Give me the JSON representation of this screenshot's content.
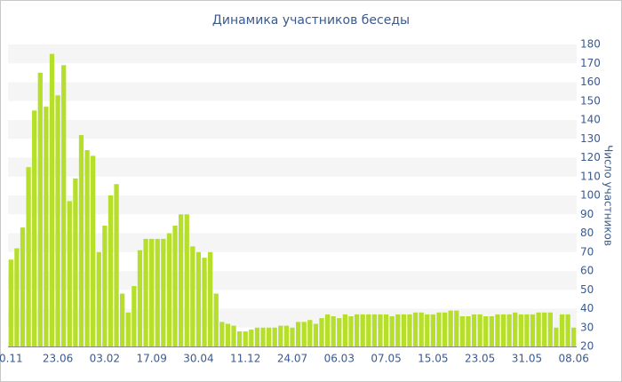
{
  "chart_data": {
    "type": "bar",
    "title": "Динамика участников беседы",
    "y_label": "Число участников",
    "categories": [
      "0.11",
      null,
      null,
      null,
      null,
      null,
      null,
      null,
      "23.06",
      null,
      null,
      null,
      null,
      null,
      null,
      null,
      "03.02",
      null,
      null,
      null,
      null,
      null,
      null,
      null,
      "17.09",
      null,
      null,
      null,
      null,
      null,
      null,
      null,
      "30.04",
      null,
      null,
      null,
      null,
      null,
      null,
      null,
      "11.12",
      null,
      null,
      null,
      null,
      null,
      null,
      null,
      "24.07",
      null,
      null,
      null,
      null,
      null,
      null,
      null,
      "06.03",
      null,
      null,
      null,
      null,
      null,
      null,
      null,
      "07.05",
      null,
      null,
      null,
      null,
      null,
      null,
      null,
      "15.05",
      null,
      null,
      null,
      null,
      null,
      null,
      null,
      "23.05",
      null,
      null,
      null,
      null,
      null,
      null,
      null,
      "31.05",
      null,
      null,
      null,
      null,
      null,
      null,
      null,
      "08.06"
    ],
    "values": [
      66,
      72,
      83,
      115,
      145,
      165,
      147,
      175,
      153,
      169,
      97,
      109,
      132,
      124,
      121,
      70,
      84,
      100,
      106,
      48,
      38,
      52,
      71,
      77,
      77,
      77,
      77,
      80,
      84,
      90,
      90,
      73,
      70,
      67,
      70,
      48,
      33,
      32,
      31,
      28,
      28,
      29,
      30,
      30,
      30,
      30,
      31,
      31,
      30,
      33,
      33,
      34,
      32,
      35,
      37,
      36,
      35,
      37,
      36,
      37,
      37,
      37,
      37,
      37,
      37,
      36,
      37,
      37,
      37,
      38,
      38,
      37,
      37,
      38,
      38,
      39,
      39,
      36,
      36,
      37,
      37,
      36,
      36,
      37,
      37,
      37,
      38,
      37,
      37,
      37,
      38,
      38,
      38,
      30,
      37,
      37,
      30
    ],
    "color": "#b5df2b",
    "ylim": [
      20,
      180
    ],
    "yticks": [
      20,
      30,
      40,
      50,
      60,
      70,
      80,
      90,
      100,
      110,
      120,
      130,
      140,
      150,
      160,
      170,
      180
    ],
    "y_axis_side": "right",
    "stripes": true
  }
}
